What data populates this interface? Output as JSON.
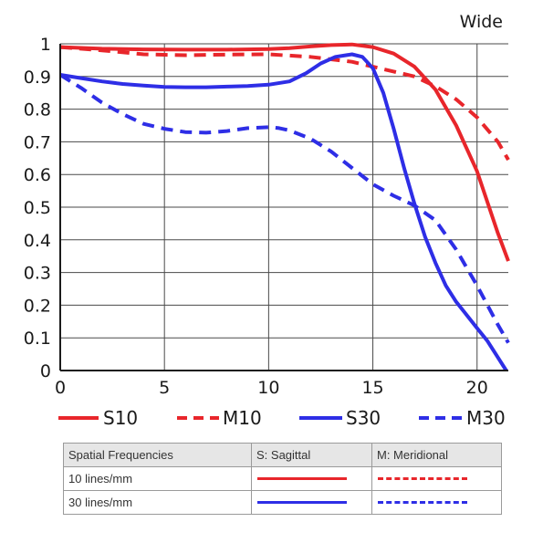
{
  "chart_data": {
    "type": "line",
    "title": "Wide",
    "xlabel": "",
    "ylabel": "",
    "xlim": [
      0,
      21.5
    ],
    "ylim": [
      0,
      1
    ],
    "x_ticks": [
      "0",
      "5",
      "10",
      "15",
      "20"
    ],
    "y_ticks": [
      "0",
      "0.1",
      "0.2",
      "0.3",
      "0.4",
      "0.5",
      "0.6",
      "0.7",
      "0.8",
      "0.9",
      "1"
    ],
    "grid": true,
    "legend_position": "bottom",
    "series": [
      {
        "name": "S10",
        "color": "#e8262b",
        "dash": false,
        "points": [
          [
            0,
            0.99
          ],
          [
            2,
            0.985
          ],
          [
            4,
            0.983
          ],
          [
            6,
            0.982
          ],
          [
            8,
            0.982
          ],
          [
            10,
            0.984
          ],
          [
            11,
            0.987
          ],
          [
            12,
            0.992
          ],
          [
            13,
            0.996
          ],
          [
            14,
            0.998
          ],
          [
            15,
            0.99
          ],
          [
            16,
            0.97
          ],
          [
            17,
            0.93
          ],
          [
            18,
            0.86
          ],
          [
            19,
            0.75
          ],
          [
            20,
            0.61
          ],
          [
            21,
            0.42
          ],
          [
            21.5,
            0.335
          ]
        ]
      },
      {
        "name": "M10",
        "color": "#e8262b",
        "dash": true,
        "points": [
          [
            0,
            0.99
          ],
          [
            2,
            0.98
          ],
          [
            4,
            0.968
          ],
          [
            6,
            0.965
          ],
          [
            8,
            0.967
          ],
          [
            10,
            0.968
          ],
          [
            12,
            0.96
          ],
          [
            14,
            0.945
          ],
          [
            15,
            0.93
          ],
          [
            16,
            0.915
          ],
          [
            17,
            0.9
          ],
          [
            18,
            0.87
          ],
          [
            19,
            0.83
          ],
          [
            20,
            0.775
          ],
          [
            21,
            0.7
          ],
          [
            21.5,
            0.645
          ]
        ]
      },
      {
        "name": "S30",
        "color": "#2e2ee6",
        "dash": false,
        "points": [
          [
            0,
            0.905
          ],
          [
            1,
            0.895
          ],
          [
            2,
            0.885
          ],
          [
            3,
            0.877
          ],
          [
            4,
            0.872
          ],
          [
            5,
            0.868
          ],
          [
            6,
            0.867
          ],
          [
            7,
            0.867
          ],
          [
            8,
            0.869
          ],
          [
            9,
            0.871
          ],
          [
            10,
            0.875
          ],
          [
            11,
            0.885
          ],
          [
            11.8,
            0.91
          ],
          [
            12.5,
            0.94
          ],
          [
            13.2,
            0.96
          ],
          [
            14,
            0.968
          ],
          [
            14.5,
            0.96
          ],
          [
            15,
            0.925
          ],
          [
            15.5,
            0.85
          ],
          [
            16,
            0.74
          ],
          [
            16.5,
            0.62
          ],
          [
            17,
            0.51
          ],
          [
            17.5,
            0.41
          ],
          [
            18,
            0.33
          ],
          [
            18.5,
            0.26
          ],
          [
            19,
            0.21
          ],
          [
            19.5,
            0.17
          ],
          [
            20,
            0.13
          ],
          [
            20.5,
            0.09
          ],
          [
            21,
            0.04
          ],
          [
            21.4,
            0.0
          ]
        ]
      },
      {
        "name": "M30",
        "color": "#2e2ee6",
        "dash": true,
        "points": [
          [
            0,
            0.905
          ],
          [
            1,
            0.865
          ],
          [
            2,
            0.82
          ],
          [
            3,
            0.785
          ],
          [
            4,
            0.755
          ],
          [
            5,
            0.74
          ],
          [
            6,
            0.73
          ],
          [
            7,
            0.728
          ],
          [
            8,
            0.733
          ],
          [
            9,
            0.742
          ],
          [
            10,
            0.745
          ],
          [
            10.5,
            0.742
          ],
          [
            11,
            0.735
          ],
          [
            12,
            0.71
          ],
          [
            13,
            0.67
          ],
          [
            14,
            0.62
          ],
          [
            15,
            0.57
          ],
          [
            16,
            0.535
          ],
          [
            17,
            0.505
          ],
          [
            18,
            0.46
          ],
          [
            19,
            0.37
          ],
          [
            20,
            0.26
          ],
          [
            21,
            0.14
          ],
          [
            21.5,
            0.085
          ]
        ]
      }
    ]
  },
  "legend_table": {
    "headers": [
      "Spatial Frequencies",
      "S: Sagittal",
      "M: Meridional"
    ],
    "rows": [
      {
        "label": "10 lines/mm",
        "color": "#e8262b"
      },
      {
        "label": "30 lines/mm",
        "color": "#2e2ee6"
      }
    ]
  }
}
